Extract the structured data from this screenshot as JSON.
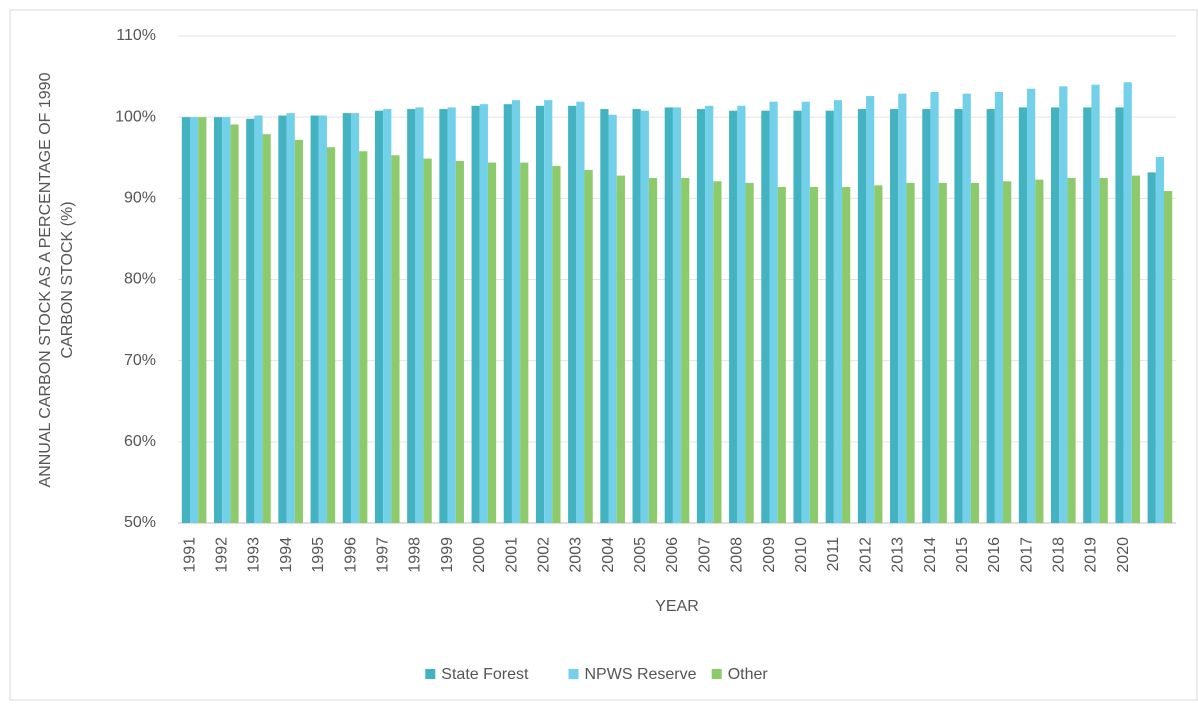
{
  "chart_data": {
    "type": "bar",
    "ylabel": [
      "ANNUAL CARBON STOCK AS A PERCENTAGE OF 1990",
      "CARBON STOCK (%)"
    ],
    "xlabel": "YEAR",
    "categories": [
      "1991",
      "1992",
      "1993",
      "1994",
      "1995",
      "1996",
      "1997",
      "1998",
      "1999",
      "2000",
      "2001",
      "2002",
      "2003",
      "2004",
      "2005",
      "2006",
      "2007",
      "2008",
      "2009",
      "2010",
      "2011",
      "2012",
      "2013",
      "2014",
      "2015",
      "2016",
      "2017",
      "2018",
      "2019",
      "2020",
      null
    ],
    "series": [
      {
        "name": "State Forest",
        "color": "#43b2c1",
        "values": [
          100,
          100,
          99.8,
          100.2,
          100.2,
          100.5,
          100.8,
          101,
          101,
          101.4,
          101.6,
          101.4,
          101.4,
          101,
          101,
          101.2,
          101,
          100.8,
          100.8,
          100.8,
          100.8,
          101,
          101,
          101,
          101,
          101,
          101.2,
          101.2,
          101.2,
          101.2,
          93.2
        ]
      },
      {
        "name": "NPWS Reserve",
        "color": "#72d0e9",
        "values": [
          100,
          100,
          100.2,
          100.5,
          100.2,
          100.5,
          101,
          101.2,
          101.2,
          101.6,
          102.1,
          102.1,
          101.9,
          100.3,
          100.8,
          101.2,
          101.4,
          101.4,
          101.9,
          101.9,
          102.1,
          102.6,
          102.9,
          103.1,
          102.9,
          103.1,
          103.5,
          103.8,
          104,
          104.3,
          95.1
        ]
      },
      {
        "name": "Other",
        "color": "#8dca6b",
        "values": [
          100,
          99.1,
          97.9,
          97.2,
          96.3,
          95.8,
          95.3,
          94.9,
          94.6,
          94.4,
          94.4,
          94,
          93.5,
          92.8,
          92.5,
          92.5,
          92.1,
          91.9,
          91.4,
          91.4,
          91.4,
          91.6,
          91.9,
          91.9,
          91.9,
          92.1,
          92.3,
          92.5,
          92.5,
          92.8,
          90.9
        ]
      }
    ],
    "ylim": [
      50,
      110
    ],
    "yticks": [
      {
        "value": 50,
        "label": "50%"
      },
      {
        "value": 60,
        "label": "60%"
      },
      {
        "value": 70,
        "label": "70%"
      },
      {
        "value": 80,
        "label": "80%"
      },
      {
        "value": 90,
        "label": "90%"
      },
      {
        "value": 100,
        "label": "100%"
      },
      {
        "value": 110,
        "label": "110%"
      }
    ],
    "grid": true,
    "legend": "bottom"
  }
}
